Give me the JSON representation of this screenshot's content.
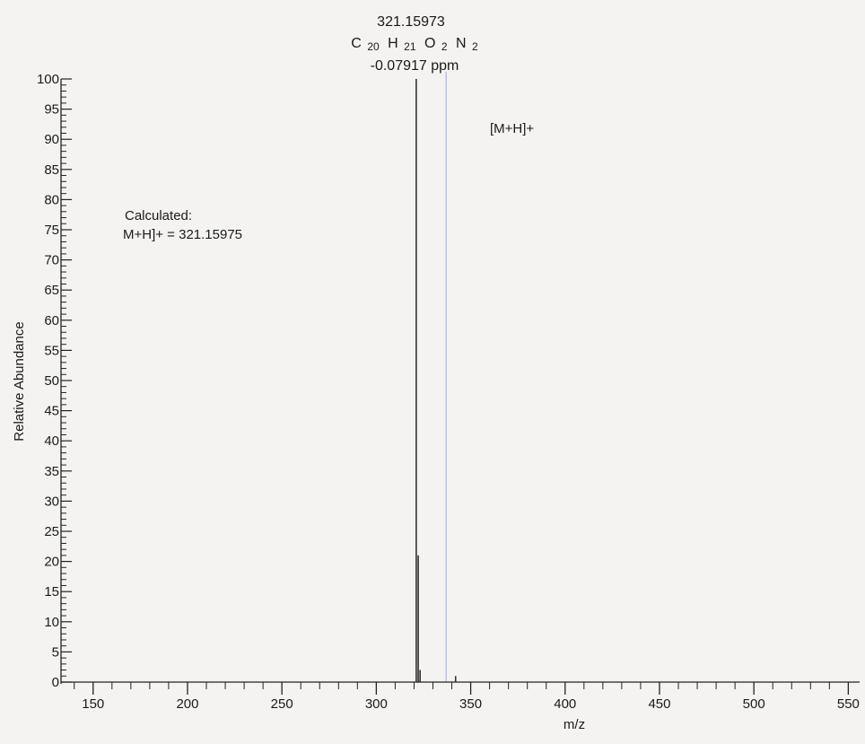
{
  "chart_data": {
    "type": "bar",
    "title": "",
    "xlabel": "m/z",
    "ylabel": "Relative Abundance",
    "xlim": [
      133,
      556
    ],
    "ylim": [
      0,
      100
    ],
    "x_ticks": [
      150,
      200,
      250,
      300,
      350,
      400,
      450,
      500,
      550
    ],
    "x_tick_labels": [
      "150",
      "200",
      "250",
      "300",
      "350",
      "400",
      "450",
      "500",
      "550"
    ],
    "y_ticks": [
      0,
      5,
      10,
      15,
      20,
      25,
      30,
      35,
      40,
      45,
      50,
      55,
      60,
      65,
      70,
      75,
      80,
      85,
      90,
      95,
      100
    ],
    "peaks": [
      {
        "x": 321.15973,
        "y": 100
      },
      {
        "x": 322.2,
        "y": 21
      },
      {
        "x": 323.2,
        "y": 2
      },
      {
        "x": 342.0,
        "y": 1
      }
    ],
    "reference_line_x": 337,
    "annotations": {
      "peak_mass": "321.15973",
      "formula": {
        "C": "C",
        "C_sub": "20",
        "H": "H",
        "H_sub": "21",
        "O": "O",
        "O_sub": "2",
        "N": "N",
        "N_sub": "2"
      },
      "ppm": "-0.07917 ppm",
      "ion_label": "[M+H]+",
      "calc_line1": "Calculated:",
      "calc_line2": "M+H]+ = 321.15975"
    },
    "colors": {
      "axis": "#222222",
      "peak": "#333333",
      "reference_line": "#b9c3dd",
      "background": "#f4f3f1"
    }
  }
}
